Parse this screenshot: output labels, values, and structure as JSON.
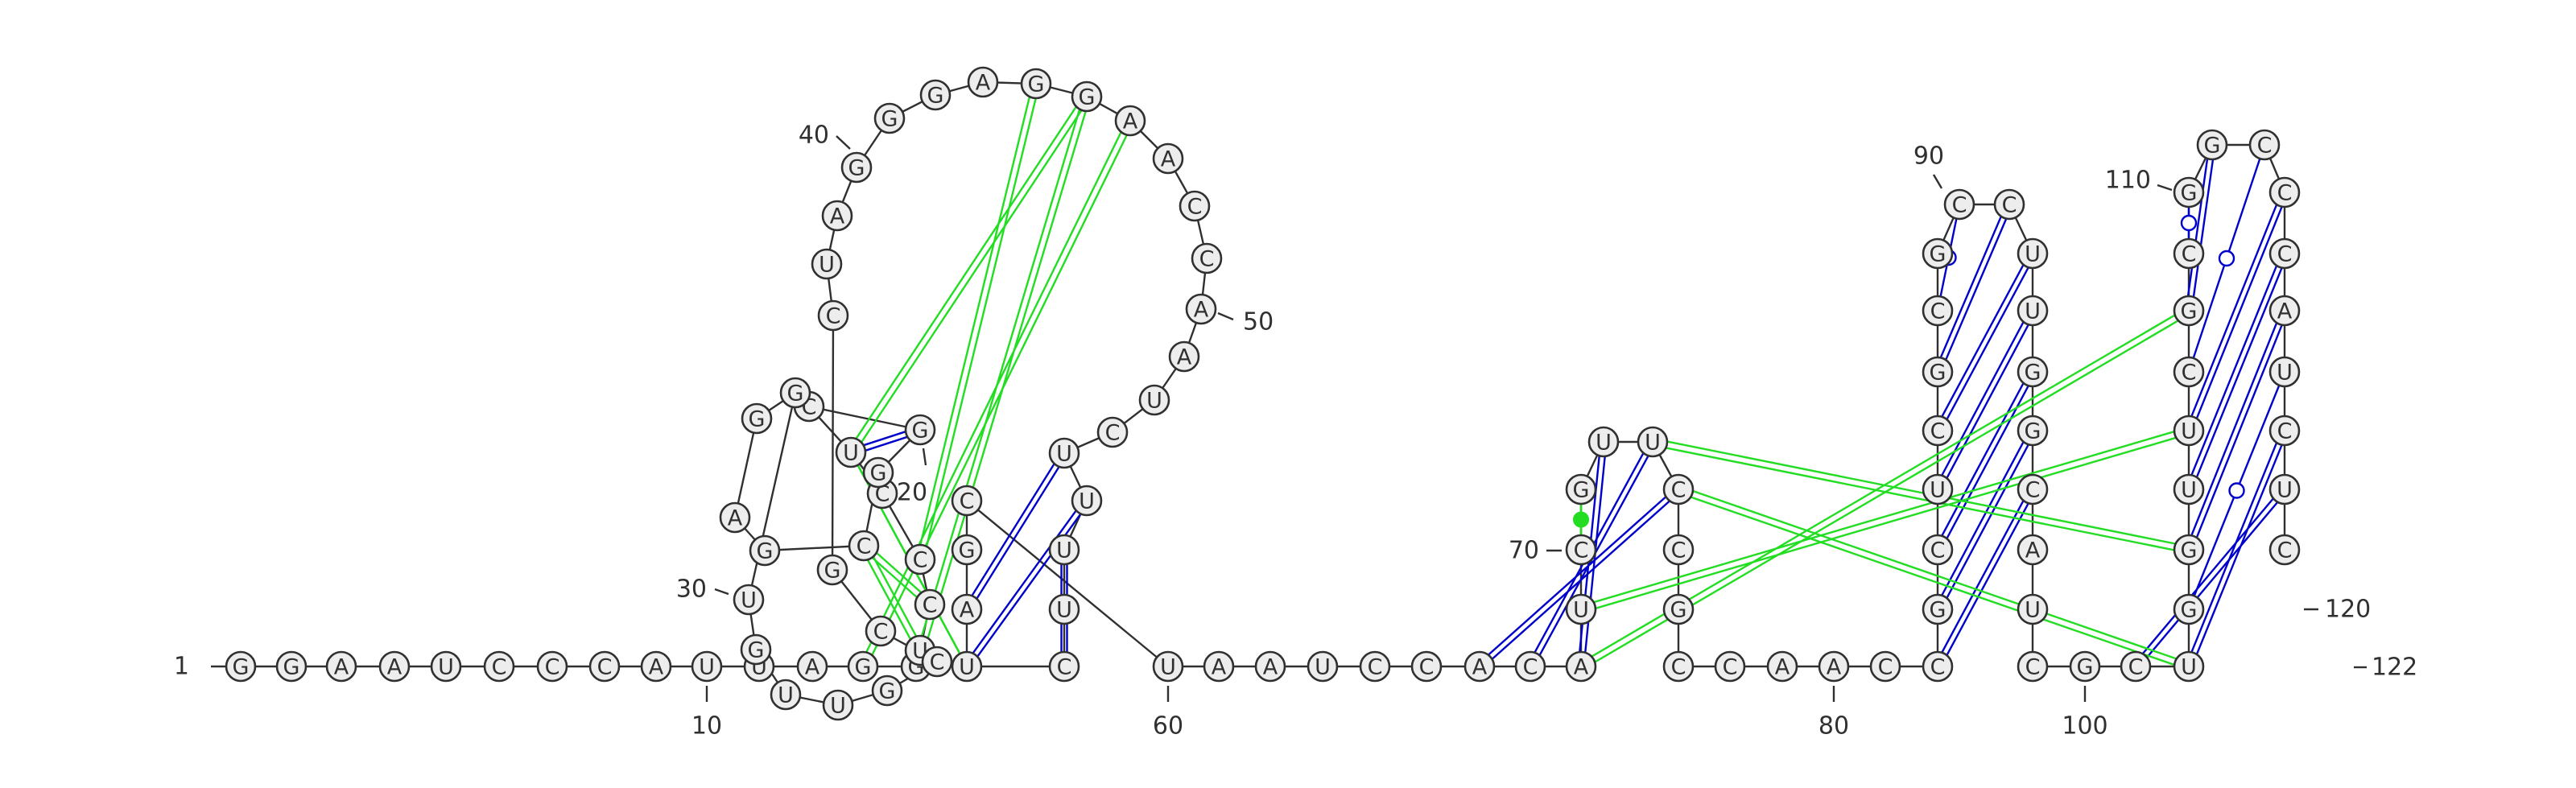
{
  "diagram": {
    "sequence": "GGAAUCCCAUUAGGUCCCUCGGCGAGGUGUUGCCGCUAGGGAGGAACCAAUCUUUUCUAGCUAAUCCACAUCGUUCCGCCAACCGCUCGCGCCUUGGCAUCGCUGGUUCGCGGCCCAUCUC",
    "colors": {
      "nucleotide_fill": "#ededed",
      "outline": "#303030",
      "canonical_pair": "#0000cc",
      "pseudoknot_pair": "#22dd22"
    },
    "number_labels": [
      {
        "label": "1"
      },
      {
        "label": "10"
      },
      {
        "label": "20"
      },
      {
        "label": "30"
      },
      {
        "label": "40"
      },
      {
        "label": "50"
      },
      {
        "label": "60"
      },
      {
        "label": "70"
      },
      {
        "label": "80"
      },
      {
        "label": "90"
      },
      {
        "label": "100"
      },
      {
        "label": "110"
      },
      {
        "label": "120"
      },
      {
        "label": "122"
      }
    ],
    "pairs": [
      {
        "i": 18,
        "j": 22,
        "type": "canonical"
      },
      {
        "i": 19,
        "j": 21,
        "type": "canonical"
      },
      {
        "i": 53,
        "j": 59,
        "type": "canonical"
      },
      {
        "i": 54,
        "j": 58,
        "type": "canonical"
      },
      {
        "i": 55,
        "j": 57,
        "type": "canonical"
      },
      {
        "i": 68,
        "j": 76,
        "type": "canonical"
      },
      {
        "i": 69,
        "j": 75,
        "type": "canonical"
      },
      {
        "i": 70,
        "j": 74,
        "type": "canonical"
      },
      {
        "i": 84,
        "j": 98,
        "type": "canonical"
      },
      {
        "i": 85,
        "j": 97,
        "type": "canonical"
      },
      {
        "i": 86,
        "j": 96,
        "type": "canonical"
      },
      {
        "i": 87,
        "j": 95,
        "type": "canonical"
      },
      {
        "i": 88,
        "j": 94,
        "type": "canonical"
      },
      {
        "i": 89,
        "j": 93,
        "type": "canonical"
      },
      {
        "i": 90,
        "j": 92,
        "type": "wobble"
      },
      {
        "i": 103,
        "j": 120,
        "type": "canonical"
      },
      {
        "i": 104,
        "j": 119,
        "type": "canonical"
      },
      {
        "i": 105,
        "j": 118,
        "type": "wobble"
      },
      {
        "i": 106,
        "j": 117,
        "type": "canonical"
      },
      {
        "i": 107,
        "j": 116,
        "type": "canonical"
      },
      {
        "i": 108,
        "j": 115,
        "type": "canonical"
      },
      {
        "i": 109,
        "j": 114,
        "type": "wobble"
      },
      {
        "i": 110,
        "j": 113,
        "type": "canonical"
      },
      {
        "i": 111,
        "j": 112,
        "type": "wobble"
      },
      {
        "i": 72,
        "j": 73,
        "type": "noncanonical"
      },
      {
        "i": 19,
        "j": 58,
        "type": "pseudoknot-single"
      },
      {
        "i": 13,
        "j": 45,
        "type": "pseudoknot"
      },
      {
        "i": 14,
        "j": 44,
        "type": "pseudoknot"
      },
      {
        "i": 19,
        "j": 44,
        "type": "pseudoknot"
      },
      {
        "i": 17,
        "j": 43,
        "type": "pseudoknot"
      },
      {
        "i": 16,
        "j": 23,
        "type": "pseudoknot"
      },
      {
        "i": 15,
        "j": 23,
        "type": "pseudoknot"
      },
      {
        "i": 70,
        "j": 110,
        "type": "pseudoknot"
      },
      {
        "i": 71,
        "j": 108,
        "type": "pseudoknot"
      },
      {
        "i": 75,
        "j": 106,
        "type": "pseudoknot"
      },
      {
        "i": 76,
        "j": 104,
        "type": "pseudoknot"
      }
    ]
  }
}
